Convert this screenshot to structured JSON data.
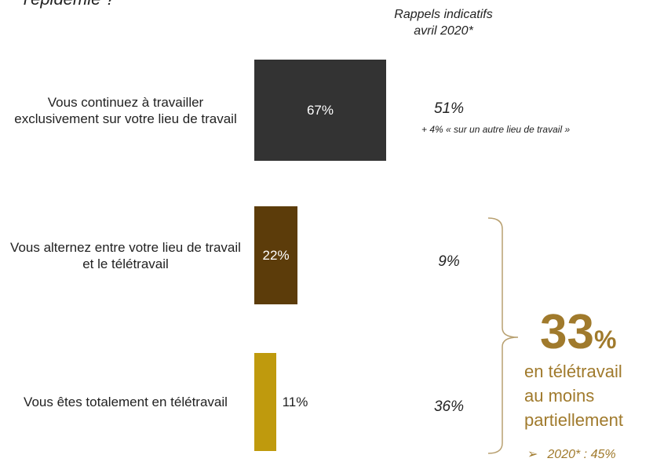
{
  "chart_data": {
    "type": "bar",
    "orientation": "horizontal",
    "title": "l'épidémie ?",
    "categories": [
      "Vous continuez à travailler exclusivement sur votre lieu de travail",
      "Vous alternez entre votre lieu de travail et le télétravail",
      "Vous êtes totalement en télétravail"
    ],
    "values": [
      67,
      22,
      11
    ],
    "value_labels": [
      "67%",
      "22%",
      "11%"
    ],
    "colors": [
      "#333333",
      "#5c3c0a",
      "#bf9a0d"
    ],
    "recall": {
      "title": [
        "Rappels indicatifs",
        "avril 2020*"
      ],
      "labels": [
        "51%",
        "9%",
        "36%"
      ],
      "note": "+ 4% « sur un autre lieu de travail »"
    },
    "summary": {
      "value": "33",
      "unit": "%",
      "text": [
        "en télétravail",
        "au moins",
        "partiellement"
      ],
      "bullet": "2020* : 45%"
    }
  }
}
